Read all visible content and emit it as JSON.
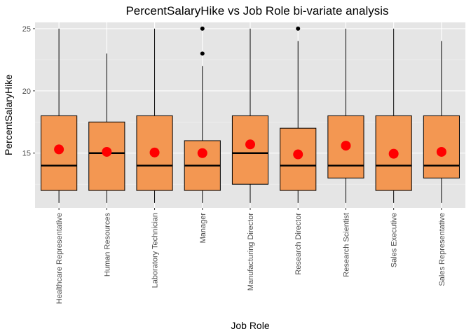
{
  "chart_data": {
    "type": "boxplot",
    "title": "PercentSalaryHike vs Job Role bi-variate analysis",
    "xlabel": "Job Role",
    "ylabel": "PercentSalaryHike",
    "ylim": [
      10.6,
      25.5
    ],
    "yticks": [
      15,
      20,
      25
    ],
    "grid": true,
    "legend": "none",
    "box_fill_color": "#f39752",
    "mean_marker_color": "#ff0000",
    "panel_background": "#e5e5e5",
    "categories": [
      "Healthcare Representative",
      "Human Resources",
      "Laboratory Technician",
      "Manager",
      "Manufacturing Director",
      "Research Director",
      "Research Scientist",
      "Sales Executive",
      "Sales Representative"
    ],
    "boxes": [
      {
        "category": "Healthcare Representative",
        "whisker_low": 11,
        "q1": 12,
        "median": 14,
        "q3": 18,
        "whisker_high": 25,
        "mean": 15.3,
        "outliers": []
      },
      {
        "category": "Human Resources",
        "whisker_low": 11,
        "q1": 12,
        "median": 15,
        "q3": 17.5,
        "whisker_high": 23,
        "mean": 15.1,
        "outliers": []
      },
      {
        "category": "Laboratory Technician",
        "whisker_low": 11,
        "q1": 12,
        "median": 14,
        "q3": 18,
        "whisker_high": 25,
        "mean": 15.05,
        "outliers": []
      },
      {
        "category": "Manager",
        "whisker_low": 11,
        "q1": 12,
        "median": 14,
        "q3": 16,
        "whisker_high": 22,
        "mean": 15.0,
        "outliers": [
          23,
          25
        ]
      },
      {
        "category": "Manufacturing Director",
        "whisker_low": 11,
        "q1": 12.5,
        "median": 15,
        "q3": 18,
        "whisker_high": 25,
        "mean": 15.7,
        "outliers": []
      },
      {
        "category": "Research Director",
        "whisker_low": 11,
        "q1": 12,
        "median": 14,
        "q3": 17,
        "whisker_high": 24,
        "mean": 14.9,
        "outliers": [
          25
        ]
      },
      {
        "category": "Research Scientist",
        "whisker_low": 11,
        "q1": 13,
        "median": 14,
        "q3": 18,
        "whisker_high": 25,
        "mean": 15.6,
        "outliers": []
      },
      {
        "category": "Sales Executive",
        "whisker_low": 11,
        "q1": 12,
        "median": 14,
        "q3": 18,
        "whisker_high": 25,
        "mean": 14.95,
        "outliers": []
      },
      {
        "category": "Sales Representative",
        "whisker_low": 11,
        "q1": 13,
        "median": 14,
        "q3": 18,
        "whisker_high": 24,
        "mean": 15.1,
        "outliers": []
      }
    ]
  }
}
